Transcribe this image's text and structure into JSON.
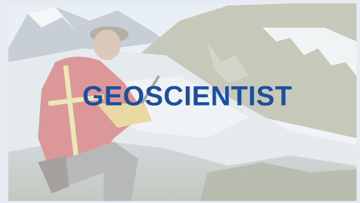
{
  "banner": {
    "title": "GEOSCIENTIST"
  }
}
